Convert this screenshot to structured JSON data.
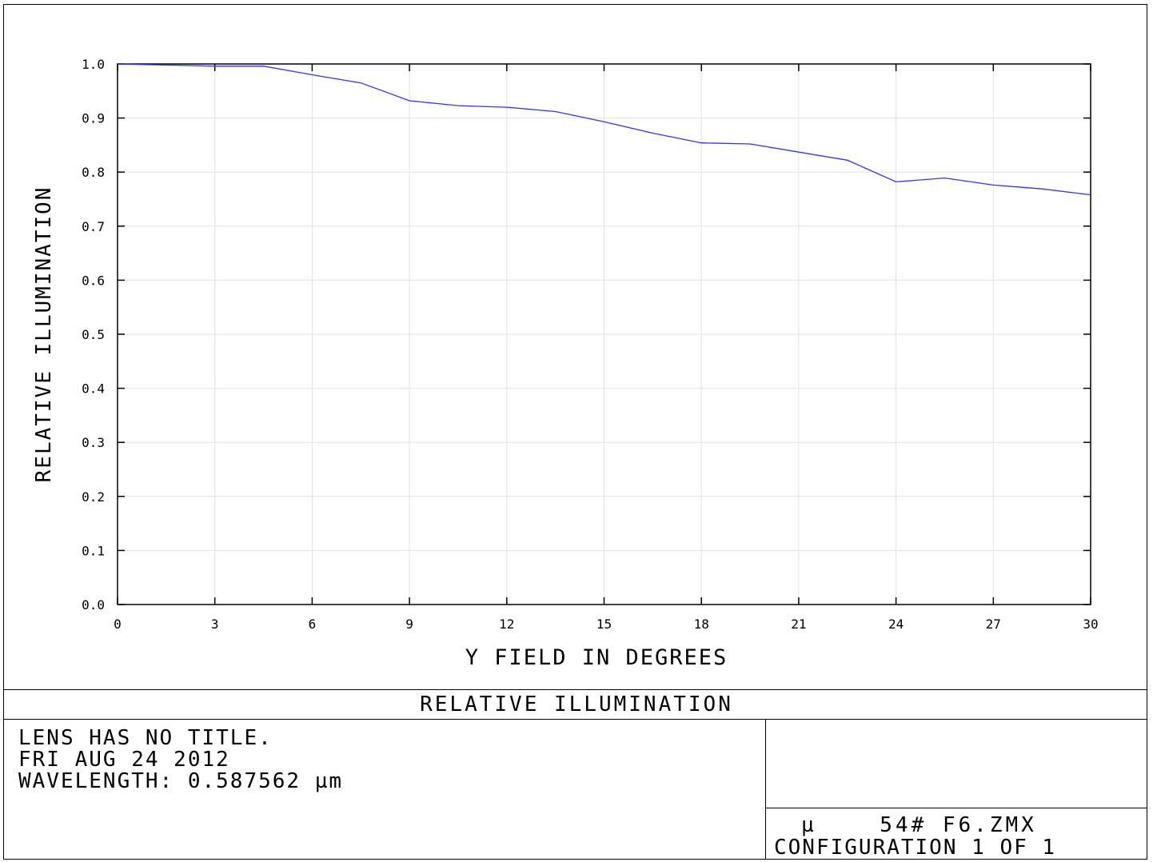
{
  "chart_data": {
    "type": "line",
    "title": "RELATIVE ILLUMINATION",
    "xlabel": "Y FIELD IN DEGREES",
    "ylabel": "RELATIVE ILLUMINATION",
    "xlim": [
      0,
      30
    ],
    "ylim": [
      0.0,
      1.0
    ],
    "grid": true,
    "x_ticks": [
      "0",
      "3",
      "6",
      "9",
      "12",
      "15",
      "18",
      "21",
      "24",
      "27",
      "30"
    ],
    "y_ticks": [
      "0.0",
      "0.1",
      "0.2",
      "0.3",
      "0.4",
      "0.5",
      "0.6",
      "0.7",
      "0.8",
      "0.9",
      "1.0"
    ],
    "series": [
      {
        "color": "#3333ff",
        "x": [
          0,
          1.5,
          3,
          4.5,
          6,
          7.5,
          9,
          10.5,
          12,
          13.5,
          15,
          16.5,
          18,
          19.5,
          21,
          22.5,
          24,
          25.5,
          27,
          28.5,
          30
        ],
        "y": [
          1.0,
          0.998,
          0.996,
          0.996,
          0.98,
          0.965,
          0.932,
          0.923,
          0.92,
          0.912,
          0.893,
          0.872,
          0.854,
          0.852,
          0.837,
          0.822,
          0.782,
          0.789,
          0.776,
          0.769,
          0.758
        ]
      }
    ]
  },
  "info": {
    "line1": "LENS HAS NO TITLE.",
    "line2": "FRI AUG 24 2012",
    "line3": "WAVELENGTH: 0.587562 µm",
    "file_line": "µ    54# F6.ZMX",
    "config_line": "CONFIGURATION 1 OF 1"
  }
}
